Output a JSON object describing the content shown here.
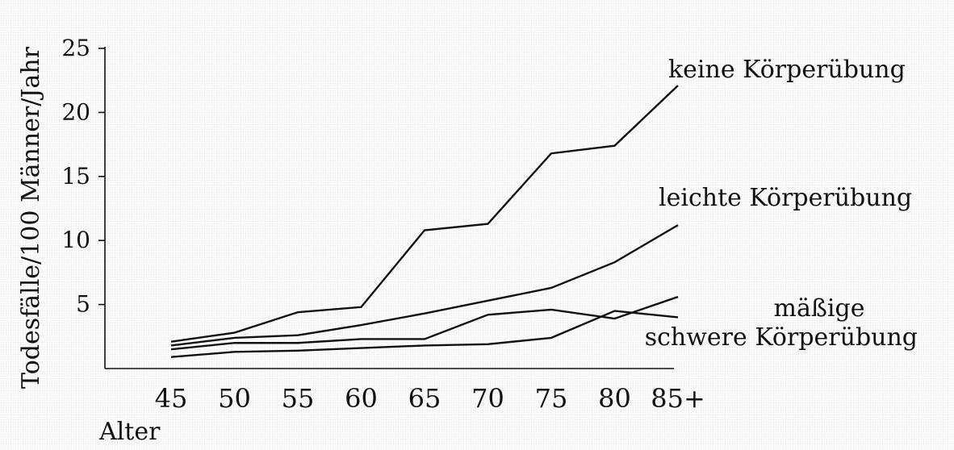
{
  "chart_data": {
    "type": "line",
    "xlabel": "Alter",
    "ylabel": "Todesfälle/100 Männer/Jahr",
    "x": [
      45,
      50,
      55,
      60,
      65,
      70,
      75,
      80,
      85
    ],
    "x_tick_labels": [
      "45",
      "50",
      "55",
      "60",
      "65",
      "70",
      "75",
      "80",
      "85+"
    ],
    "y_ticks": [
      5,
      10,
      15,
      20,
      25
    ],
    "y_tick_labels": [
      "5",
      "10",
      "15",
      "20",
      "25"
    ],
    "ylim": [
      0,
      25
    ],
    "grid": false,
    "series": [
      {
        "name": "keine Körperübung",
        "values": [
          2.1,
          2.8,
          4.4,
          4.8,
          10.8,
          11.3,
          16.8,
          17.4,
          22.1
        ]
      },
      {
        "name": "leichte Körperübung",
        "values": [
          1.8,
          2.4,
          2.6,
          3.4,
          4.3,
          5.3,
          6.3,
          8.3,
          11.2
        ]
      },
      {
        "name": "mäßige",
        "values": [
          1.5,
          2.0,
          2.0,
          2.3,
          2.3,
          4.2,
          4.6,
          3.9,
          5.6
        ]
      },
      {
        "name": "schwere Körperübung",
        "values": [
          0.9,
          1.3,
          1.4,
          1.6,
          1.8,
          1.9,
          2.4,
          4.5,
          4.0
        ]
      }
    ]
  }
}
